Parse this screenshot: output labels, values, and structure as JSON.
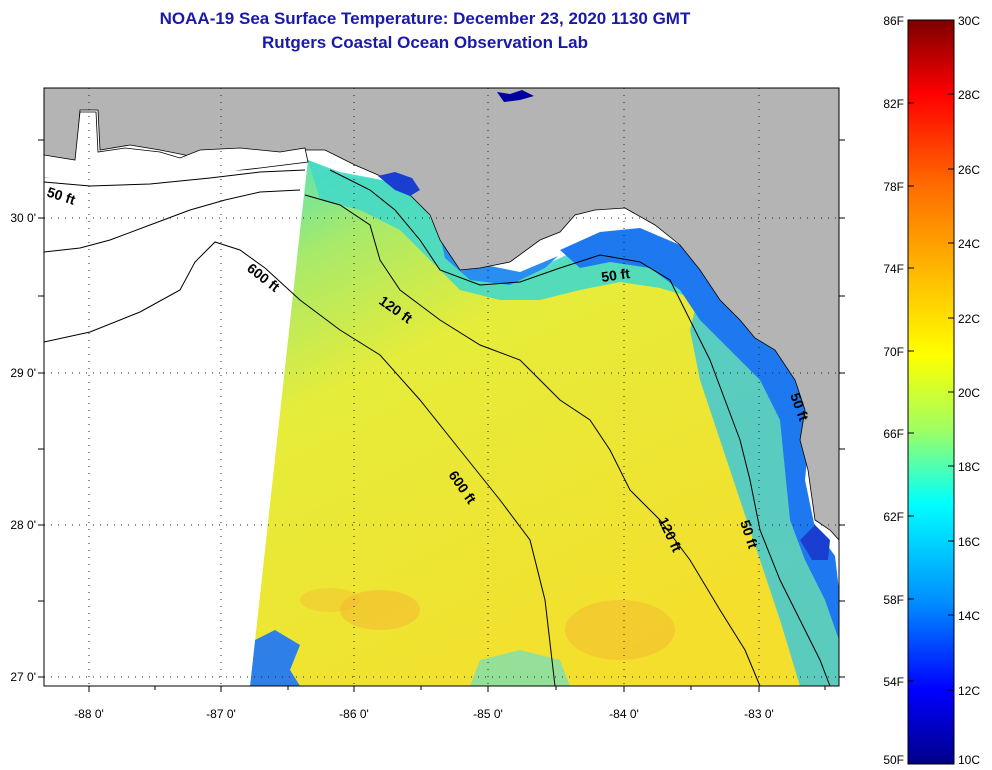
{
  "title_line1": "NOAA-19 Sea Surface Temperature:  December 23, 2020 1130 GMT",
  "title_line2": "Rutgers Coastal Ocean Observation Lab",
  "map": {
    "lon_labels": [
      "-88 0'",
      "-87 0'",
      "-86 0'",
      "-85 0'",
      "-84 0'",
      "-83 0'"
    ],
    "lat_labels": [
      "30 0'",
      "29 0'",
      "28 0'",
      "27 0'"
    ],
    "contour_labels": {
      "fifty_west": "50 ft",
      "six_hundred_north": "600 ft",
      "one_twenty_north": "120 ft",
      "fifty_north": "50 ft",
      "fifty_east_small": "50 ft",
      "six_hundred_mid": "600 ft",
      "one_twenty_south": "120 ft",
      "fifty_south": "50 ft"
    },
    "colors": {
      "land": "#b4b4b4",
      "shelf_blue": "#1e78f0",
      "offshore_yellow": "#e8e63a",
      "no_data": "#ffffff"
    }
  },
  "colorbar": {
    "fahrenheit_labels": [
      "86F",
      "82F",
      "78F",
      "74F",
      "70F",
      "66F",
      "62F",
      "58F",
      "54F",
      "50F"
    ],
    "celsius_labels": [
      "30C",
      "28C",
      "26C",
      "24C",
      "22C",
      "20C",
      "18C",
      "16C",
      "14C",
      "12C",
      "10C"
    ],
    "range_c": [
      10,
      30
    ],
    "range_f": [
      50,
      86
    ]
  }
}
